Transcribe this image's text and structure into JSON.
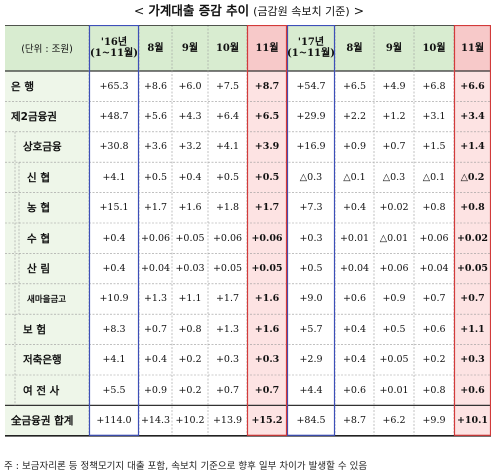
{
  "title": {
    "prefix": "<",
    "main": "가계대출 증감 추이",
    "sub": "(금감원 속보치 기준)",
    "suffix": ">"
  },
  "header": {
    "unit": "(단위 : 조원)",
    "cols": [
      "'16년\n(1~11월)",
      "8월",
      "9월",
      "10월",
      "11월",
      "'17년\n(1~11월)",
      "8월",
      "9월",
      "10월",
      "11월"
    ]
  },
  "rows": [
    {
      "label": "은    행",
      "indent": 0,
      "values": [
        "+65.3",
        "+8.6",
        "+6.0",
        "+7.5",
        "+8.7",
        "+54.7",
        "+6.5",
        "+4.9",
        "+6.8",
        "+6.6"
      ]
    },
    {
      "label": "제2금융권",
      "indent": 0,
      "values": [
        "+48.7",
        "+5.6",
        "+4.3",
        "+6.4",
        "+6.5",
        "+29.9",
        "+2.2",
        "+1.2",
        "+3.1",
        "+3.4"
      ]
    },
    {
      "label": "상호금융",
      "indent": 1,
      "values": [
        "+30.8",
        "+3.6",
        "+3.2",
        "+4.1",
        "+3.9",
        "+16.9",
        "+0.9",
        "+0.7",
        "+1.5",
        "+1.4"
      ]
    },
    {
      "label": "신    협",
      "indent": 2,
      "values": [
        "+4.1",
        "+0.5",
        "+0.4",
        "+0.5",
        "+0.5",
        "△0.3",
        "△0.1",
        "△0.3",
        "△0.1",
        "△0.2"
      ]
    },
    {
      "label": "농    협",
      "indent": 2,
      "values": [
        "+15.1",
        "+1.7",
        "+1.6",
        "+1.8",
        "+1.7",
        "+7.3",
        "+0.4",
        "+0.02",
        "+0.8",
        "+0.8"
      ]
    },
    {
      "label": "수    협",
      "indent": 2,
      "values": [
        "+0.4",
        "+0.06",
        "+0.05",
        "+0.06",
        "+0.06",
        "+0.3",
        "+0.01",
        "△0.01",
        "+0.06",
        "+0.02"
      ]
    },
    {
      "label": "산    림",
      "indent": 2,
      "values": [
        "+0.4",
        "+0.04",
        "+0.03",
        "+0.05",
        "+0.05",
        "+0.5",
        "+0.04",
        "+0.06",
        "+0.04",
        "+0.05"
      ]
    },
    {
      "label": "새마을금고",
      "indent": 2,
      "small": true,
      "values": [
        "+10.9",
        "+1.3",
        "+1.1",
        "+1.7",
        "+1.6",
        "+9.0",
        "+0.6",
        "+0.9",
        "+0.7",
        "+0.7"
      ]
    },
    {
      "label": "보    험",
      "indent": 1,
      "values": [
        "+8.3",
        "+0.7",
        "+0.8",
        "+1.3",
        "+1.6",
        "+5.7",
        "+0.4",
        "+0.5",
        "+0.6",
        "+1.1"
      ]
    },
    {
      "label": "저축은행",
      "indent": 1,
      "values": [
        "+4.1",
        "+0.4",
        "+0.2",
        "+0.3",
        "+0.3",
        "+2.9",
        "+0.4",
        "+0.05",
        "+0.2",
        "+0.3"
      ]
    },
    {
      "label": "여 전 사",
      "indent": 1,
      "values": [
        "+5.5",
        "+0.9",
        "+0.2",
        "+0.7",
        "+0.7",
        "+4.4",
        "+0.6",
        "+0.01",
        "+0.8",
        "+0.6"
      ]
    },
    {
      "label": "全금융권 합계",
      "indent": 0,
      "values": [
        "+114.0",
        "+14.3",
        "+10.2",
        "+13.9",
        "+15.2",
        "+84.5",
        "+8.7",
        "+6.2",
        "+9.9",
        "+10.1"
      ]
    }
  ],
  "footnote": "주 : 보금자리론 등 정책모기지 대출 포함, 속보치 기준으로 향후 일부 차이가 발생할 수 있음",
  "colors": {
    "header_bg": "#d8ecd0",
    "label_bg": "#eef6e9",
    "highlight_bg": "#fde3e3",
    "blue_border": "#3d4fb8",
    "red_border": "#d23a3a",
    "grid": "#9a9a9a"
  }
}
